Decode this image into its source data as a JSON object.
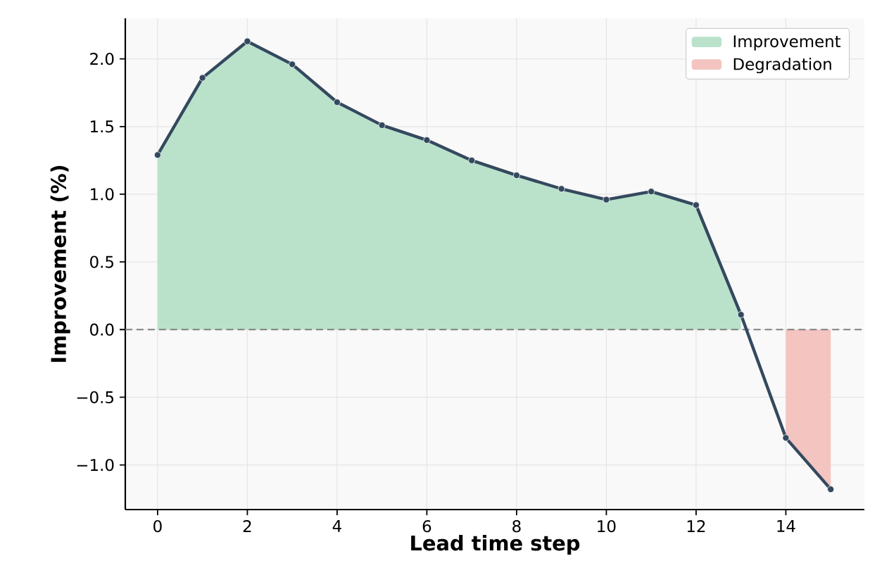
{
  "chart_data": {
    "type": "line",
    "xlabel": "Lead time step",
    "ylabel": "Improvement (%)",
    "x": [
      0,
      1,
      2,
      3,
      4,
      5,
      6,
      7,
      8,
      9,
      10,
      11,
      12,
      13,
      14,
      15
    ],
    "series": [
      {
        "name": "Improvement",
        "type": "area",
        "color": "#bae2cb",
        "values": [
          1.29,
          1.86,
          2.13,
          1.96,
          1.68,
          1.51,
          1.4,
          1.25,
          1.14,
          1.04,
          0.96,
          1.02,
          0.92,
          0.11,
          null,
          null
        ]
      },
      {
        "name": "Degradation",
        "type": "area",
        "color": "#f4c4c0",
        "values": [
          null,
          null,
          null,
          null,
          null,
          null,
          null,
          null,
          null,
          null,
          null,
          null,
          null,
          null,
          -0.8,
          -1.18
        ]
      },
      {
        "color": "#34495e",
        "marker": "circle",
        "values": [
          1.29,
          1.86,
          2.13,
          1.96,
          1.68,
          1.51,
          1.4,
          1.25,
          1.14,
          1.04,
          0.96,
          1.02,
          0.92,
          0.11,
          -0.8,
          -1.18
        ]
      }
    ],
    "xlim": [
      -0.72,
      15.75
    ],
    "ylim": [
      -1.33,
      2.3
    ],
    "xticks": [
      0,
      2,
      4,
      6,
      8,
      10,
      12,
      14
    ],
    "yticks": [
      {
        "value": -1,
        "label": "−1.0"
      },
      {
        "value": -0.5,
        "label": "−0.5"
      },
      {
        "value": 0,
        "label": "0.0"
      },
      {
        "value": 0.5,
        "label": "0.5"
      },
      {
        "value": 1,
        "label": "1.0"
      },
      {
        "value": 1.5,
        "label": "1.5"
      },
      {
        "value": 2,
        "label": "2.0"
      }
    ],
    "ref_lines": [
      {
        "axis": "y",
        "value": 0,
        "color": "#808080",
        "line_style": "dashed"
      }
    ],
    "grid": true,
    "legend": "top right"
  }
}
